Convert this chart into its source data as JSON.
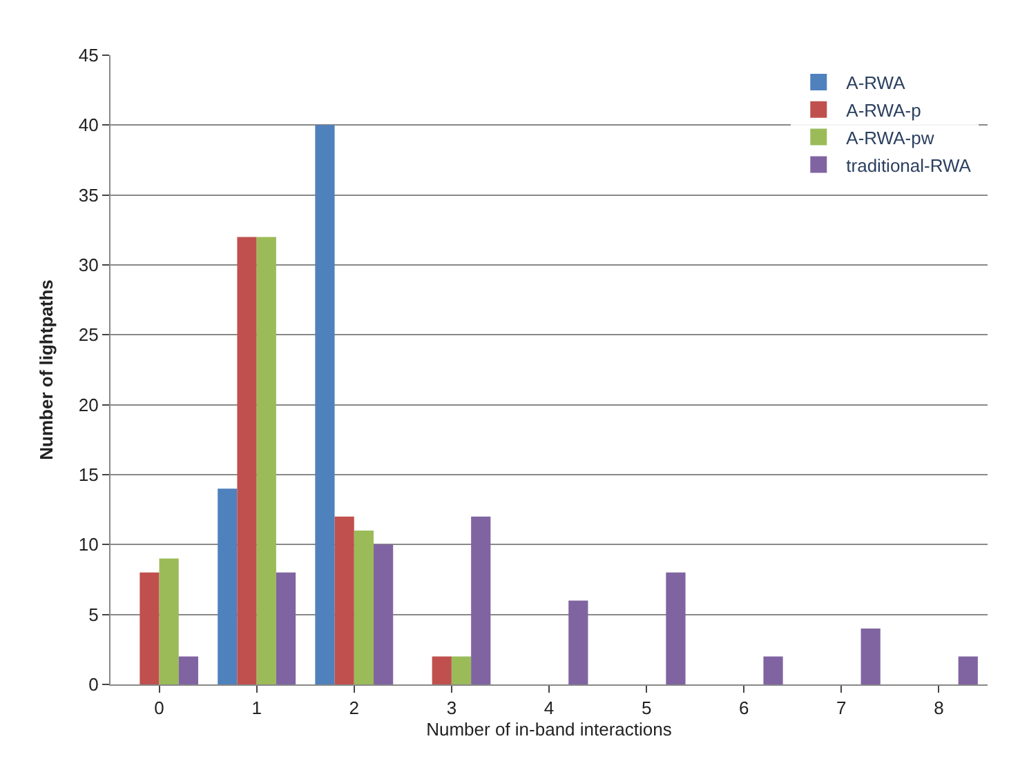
{
  "chart_data": {
    "type": "bar",
    "xlabel": "Number of in-band interactions",
    "ylabel": "Number of lightpaths",
    "categories": [
      "0",
      "1",
      "2",
      "3",
      "4",
      "5",
      "6",
      "7",
      "8"
    ],
    "series": [
      {
        "name": "A-RWA",
        "color": "#4f81bd",
        "values": [
          0,
          14,
          40,
          0,
          0,
          0,
          0,
          0,
          0
        ]
      },
      {
        "name": "A-RWA-p",
        "color": "#c0504d",
        "values": [
          8,
          32,
          12,
          2,
          0,
          0,
          0,
          0,
          0
        ]
      },
      {
        "name": "A-RWA-pw",
        "color": "#9bbb59",
        "values": [
          9,
          32,
          11,
          2,
          0,
          0,
          0,
          0,
          0
        ]
      },
      {
        "name": "traditional-RWA",
        "color": "#8064a2",
        "values": [
          2,
          8,
          10,
          12,
          6,
          8,
          2,
          4,
          2
        ]
      }
    ],
    "ylim": [
      0,
      45
    ],
    "yticks": [
      0,
      5,
      10,
      15,
      20,
      25,
      30,
      35,
      40,
      45
    ],
    "grid": "y",
    "legend": "top right"
  }
}
